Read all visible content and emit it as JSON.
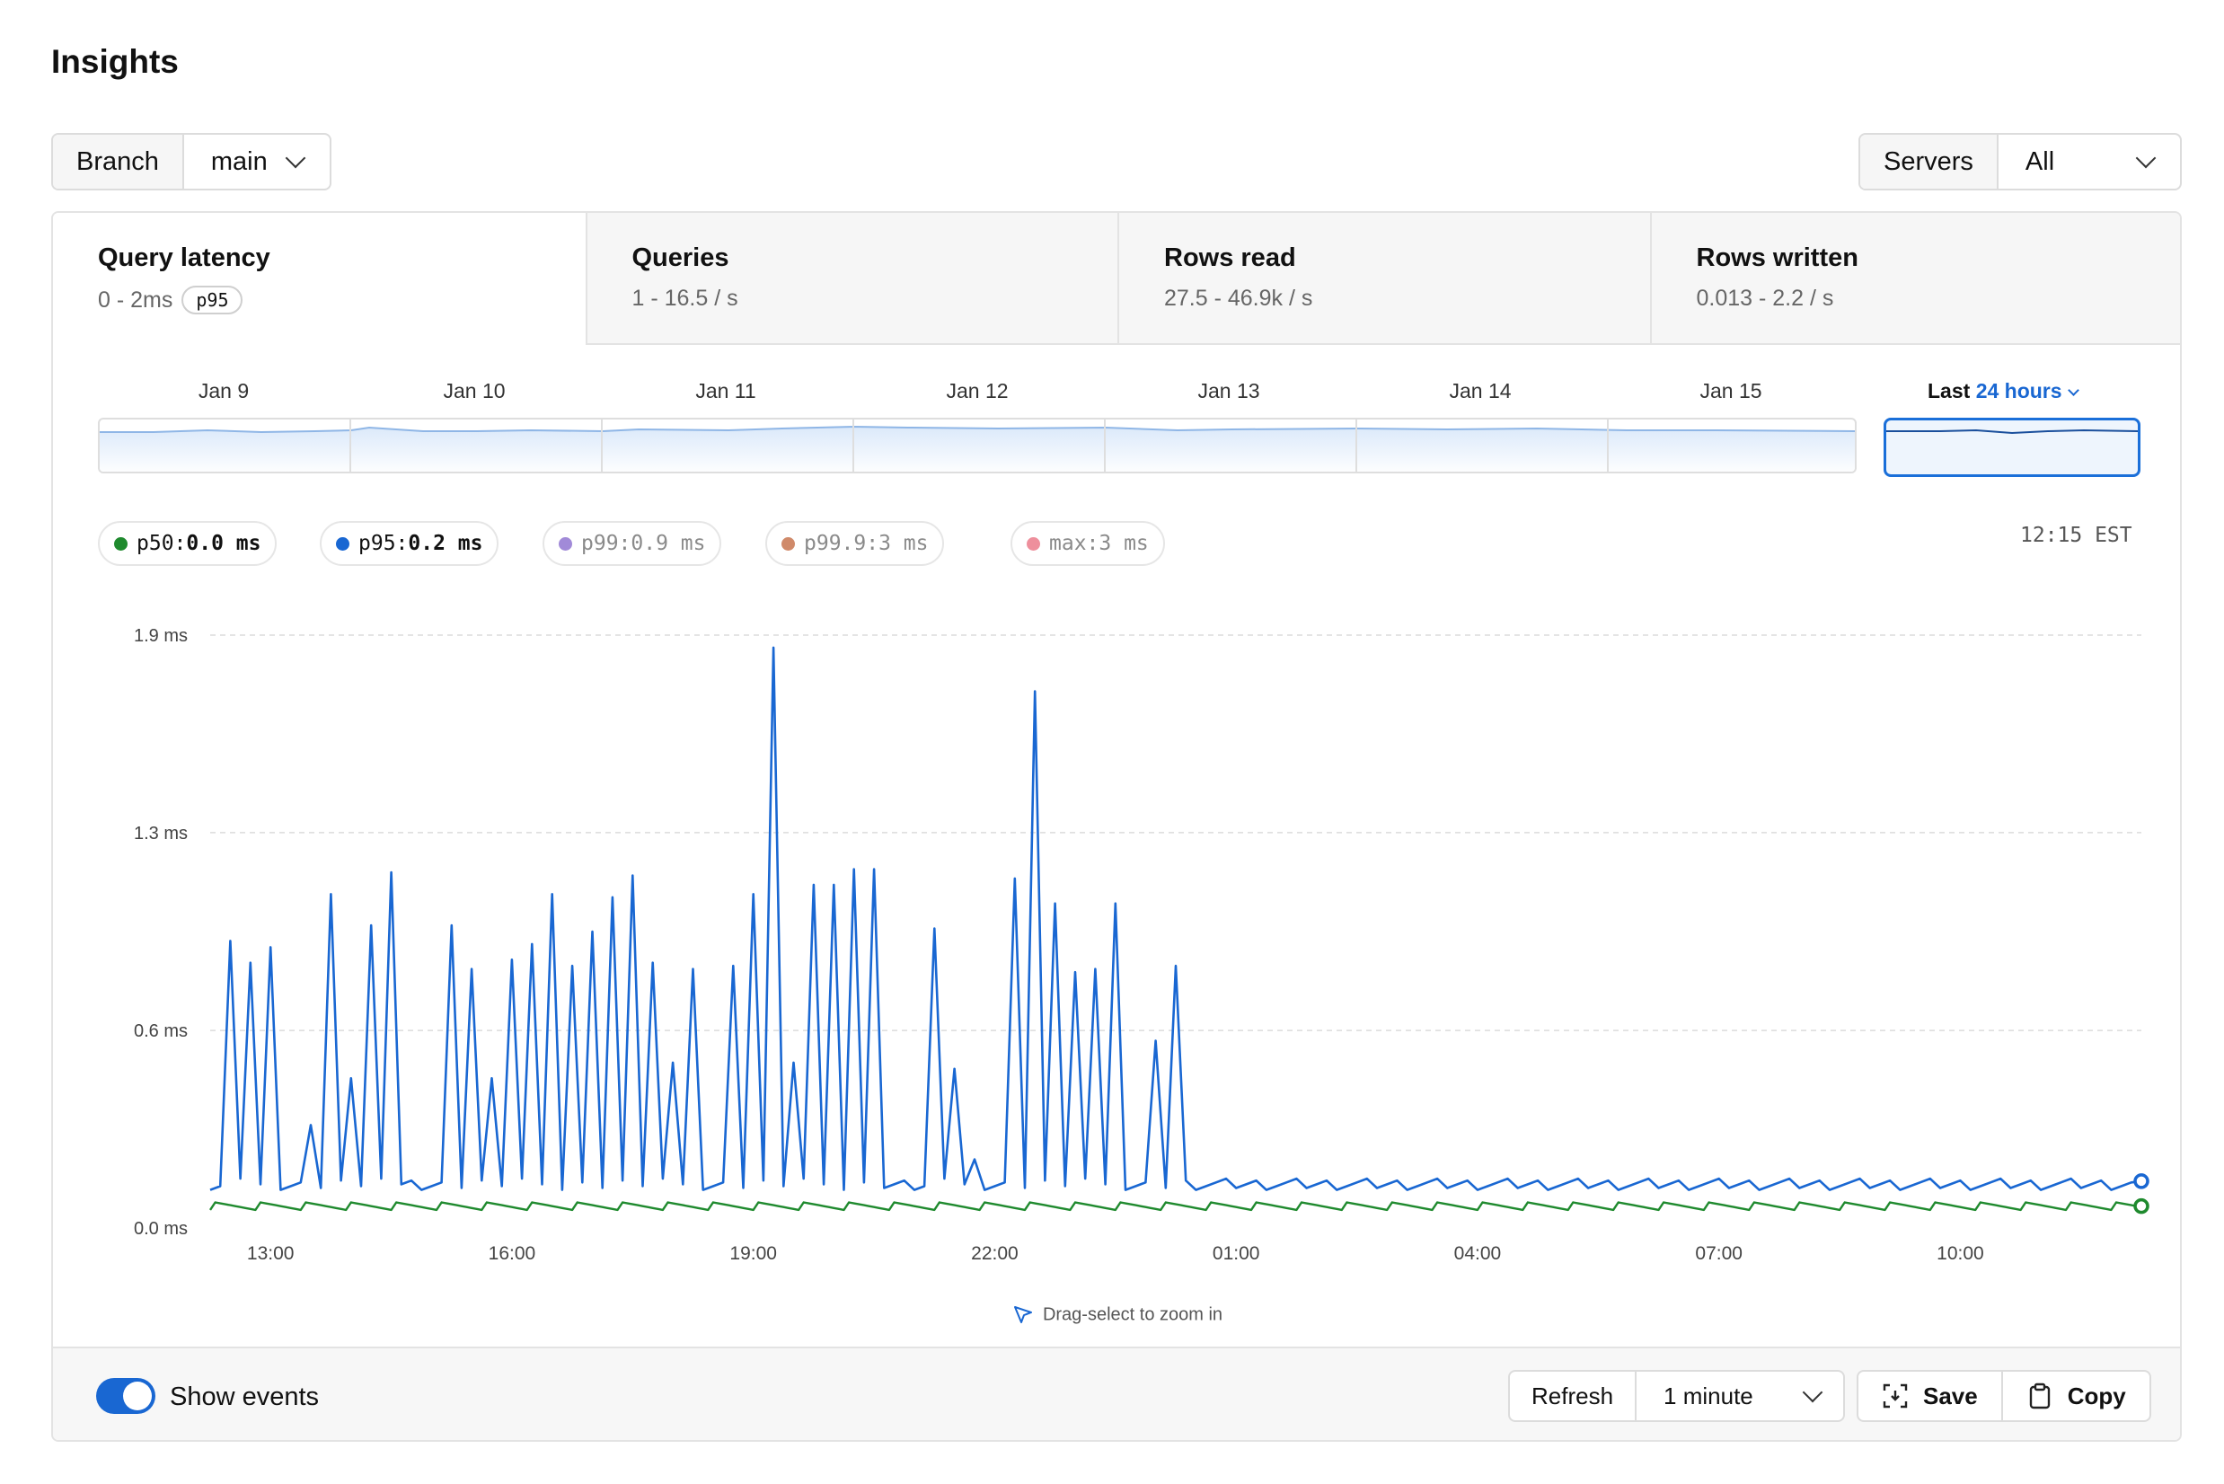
{
  "page": {
    "title": "Insights"
  },
  "branch": {
    "label": "Branch",
    "value": "main"
  },
  "servers": {
    "label": "Servers",
    "value": "All"
  },
  "tabs": [
    {
      "title": "Query latency",
      "range": "0 - 2ms",
      "badge": "p95"
    },
    {
      "title": "Queries",
      "range": "1 - 16.5 / s"
    },
    {
      "title": "Rows read",
      "range": "27.5 - 46.9k / s"
    },
    {
      "title": "Rows written",
      "range": "0.013 - 2.2 / s"
    }
  ],
  "timeline": {
    "days": [
      "Jan 9",
      "Jan 10",
      "Jan 11",
      "Jan 12",
      "Jan 13",
      "Jan 14",
      "Jan 15"
    ],
    "last_prefix": "Last",
    "last_value": "24 hours"
  },
  "legend": [
    {
      "key": "p50:",
      "value": "0.0 ms",
      "color": "#1f8a2e",
      "active": true
    },
    {
      "key": "p95:",
      "value": "0.2 ms",
      "color": "#1967d2",
      "active": true
    },
    {
      "key": "p99:",
      "value": "0.9 ms",
      "color": "#a18ad8",
      "active": false
    },
    {
      "key": "p99.9:",
      "value": "3 ms",
      "color": "#d08a6a",
      "active": false
    },
    {
      "key": "max:",
      "value": "3 ms",
      "color": "#ee8f9c",
      "active": false
    }
  ],
  "timezone_label": "12:15 EST",
  "chart_data": {
    "type": "line",
    "x_unit": "hour of day (12:15 to 12:15 next day)",
    "ylabel_ticks": [
      "0.0 ms",
      "0.6 ms",
      "1.3 ms",
      "1.9 ms"
    ],
    "y_ticks": [
      0,
      0.633,
      1.267,
      1.9
    ],
    "ylim": [
      0,
      1.9
    ],
    "x_ticks": [
      "13:00",
      "16:00",
      "19:00",
      "22:00",
      "01:00",
      "04:00",
      "07:00",
      "10:00"
    ],
    "grid": true,
    "series": [
      {
        "name": "p95",
        "color": "#1967d2",
        "baseline": 0.14,
        "peaks": [
          [
            12.5,
            0.92
          ],
          [
            12.75,
            0.85
          ],
          [
            13.0,
            0.9
          ],
          [
            13.5,
            0.33
          ],
          [
            13.75,
            1.07
          ],
          [
            14.0,
            0.48
          ],
          [
            14.25,
            0.97
          ],
          [
            14.5,
            1.14
          ],
          [
            15.25,
            0.97
          ],
          [
            15.5,
            0.83
          ],
          [
            15.75,
            0.48
          ],
          [
            16.0,
            0.86
          ],
          [
            16.25,
            0.91
          ],
          [
            16.5,
            1.07
          ],
          [
            16.75,
            0.84
          ],
          [
            17.0,
            0.95
          ],
          [
            17.25,
            1.06
          ],
          [
            17.5,
            1.13
          ],
          [
            17.75,
            0.85
          ],
          [
            18.0,
            0.53
          ],
          [
            18.25,
            0.83
          ],
          [
            18.75,
            0.84
          ],
          [
            19.0,
            1.07
          ],
          [
            19.25,
            1.86
          ],
          [
            19.5,
            0.53
          ],
          [
            19.75,
            1.1
          ],
          [
            20.0,
            1.1
          ],
          [
            20.25,
            1.15
          ],
          [
            20.5,
            1.15
          ],
          [
            21.25,
            0.96
          ],
          [
            21.5,
            0.51
          ],
          [
            22.25,
            1.12
          ],
          [
            22.5,
            1.72
          ],
          [
            22.75,
            1.04
          ],
          [
            23.0,
            0.82
          ],
          [
            23.25,
            0.83
          ],
          [
            23.5,
            1.04
          ],
          [
            24.0,
            0.6
          ],
          [
            24.25,
            0.84
          ]
        ],
        "small_bumps": [
          [
            13.5,
            0.33
          ],
          [
            21.75,
            0.22
          ]
        ],
        "last_value": 0.15
      },
      {
        "name": "p50",
        "color": "#1f8a2e",
        "baseline": 0.07,
        "last_value": 0.07
      }
    ]
  },
  "hint": "Drag-select to zoom in",
  "footer": {
    "show_events_label": "Show events",
    "show_events_on": true,
    "refresh_label": "Refresh",
    "refresh_interval": "1 minute",
    "save_label": "Save",
    "copy_label": "Copy"
  }
}
